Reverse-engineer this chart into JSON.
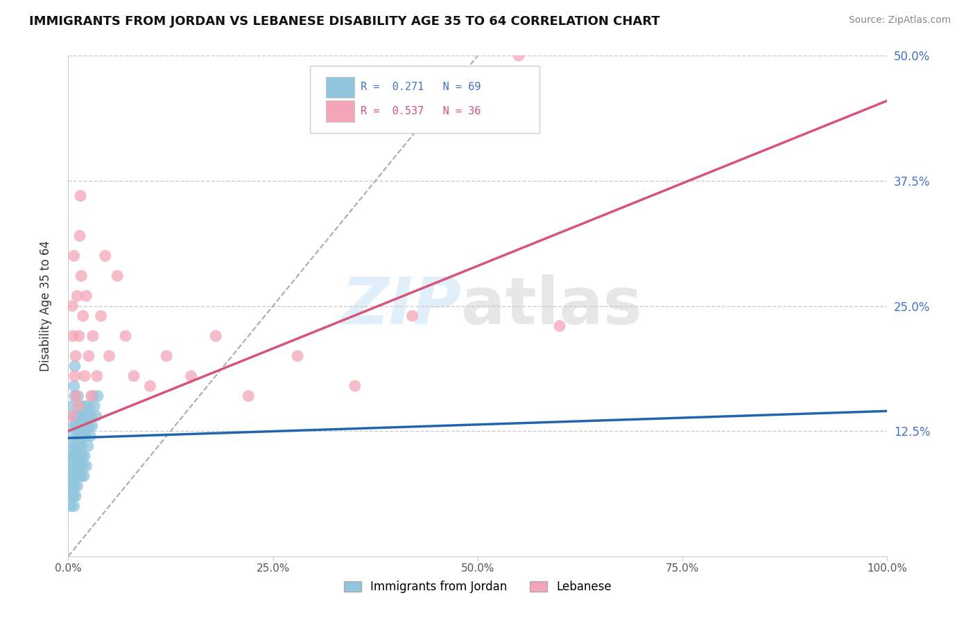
{
  "title": "IMMIGRANTS FROM JORDAN VS LEBANESE DISABILITY AGE 35 TO 64 CORRELATION CHART",
  "source": "Source: ZipAtlas.com",
  "ylabel": "Disability Age 35 to 64",
  "xlim": [
    0.0,
    1.0
  ],
  "ylim": [
    0.0,
    0.5
  ],
  "xticks": [
    0.0,
    0.25,
    0.5,
    0.75,
    1.0
  ],
  "xtick_labels": [
    "0.0%",
    "25.0%",
    "50.0%",
    "75.0%",
    "100.0%"
  ],
  "yticks": [
    0.0,
    0.125,
    0.25,
    0.375,
    0.5
  ],
  "ytick_labels": [
    "",
    "12.5%",
    "25.0%",
    "37.5%",
    "50.0%"
  ],
  "jordan_color": "#92c5de",
  "lebanese_color": "#f4a6b8",
  "jordan_line_color": "#2166ac",
  "lebanese_line_color": "#d6537a",
  "jordan_R": 0.271,
  "jordan_N": 69,
  "lebanese_R": 0.537,
  "lebanese_N": 36,
  "legend_label_jordan": "Immigrants from Jordan",
  "legend_label_lebanese": "Lebanese",
  "background_color": "#ffffff",
  "grid_color": "#cccccc",
  "jordan_x": [
    0.002,
    0.003,
    0.003,
    0.004,
    0.004,
    0.005,
    0.005,
    0.005,
    0.006,
    0.006,
    0.007,
    0.007,
    0.007,
    0.008,
    0.008,
    0.008,
    0.009,
    0.009,
    0.01,
    0.01,
    0.01,
    0.011,
    0.011,
    0.012,
    0.012,
    0.013,
    0.013,
    0.014,
    0.014,
    0.015,
    0.015,
    0.016,
    0.016,
    0.017,
    0.018,
    0.019,
    0.02,
    0.021,
    0.022,
    0.023,
    0.024,
    0.025,
    0.026,
    0.027,
    0.028,
    0.029,
    0.03,
    0.032,
    0.034,
    0.036,
    0.003,
    0.004,
    0.005,
    0.006,
    0.007,
    0.008,
    0.009,
    0.01,
    0.011,
    0.012,
    0.013,
    0.014,
    0.015,
    0.016,
    0.017,
    0.018,
    0.019,
    0.02,
    0.022
  ],
  "jordan_y": [
    0.08,
    0.1,
    0.07,
    0.09,
    0.11,
    0.08,
    0.12,
    0.15,
    0.1,
    0.13,
    0.09,
    0.14,
    0.17,
    0.11,
    0.16,
    0.19,
    0.1,
    0.13,
    0.08,
    0.11,
    0.14,
    0.12,
    0.09,
    0.13,
    0.16,
    0.11,
    0.14,
    0.1,
    0.13,
    0.12,
    0.15,
    0.11,
    0.14,
    0.13,
    0.12,
    0.14,
    0.13,
    0.15,
    0.12,
    0.14,
    0.11,
    0.13,
    0.15,
    0.12,
    0.14,
    0.13,
    0.16,
    0.15,
    0.14,
    0.16,
    0.05,
    0.06,
    0.07,
    0.06,
    0.05,
    0.07,
    0.06,
    0.08,
    0.07,
    0.09,
    0.08,
    0.1,
    0.09,
    0.08,
    0.1,
    0.09,
    0.08,
    0.1,
    0.09
  ],
  "lebanese_x": [
    0.004,
    0.005,
    0.006,
    0.007,
    0.008,
    0.009,
    0.01,
    0.011,
    0.012,
    0.013,
    0.014,
    0.015,
    0.016,
    0.018,
    0.02,
    0.022,
    0.025,
    0.028,
    0.03,
    0.035,
    0.04,
    0.045,
    0.05,
    0.06,
    0.07,
    0.08,
    0.1,
    0.12,
    0.15,
    0.18,
    0.22,
    0.28,
    0.35,
    0.42,
    0.55,
    0.6
  ],
  "lebanese_y": [
    0.14,
    0.25,
    0.22,
    0.3,
    0.18,
    0.2,
    0.16,
    0.26,
    0.15,
    0.22,
    0.32,
    0.36,
    0.28,
    0.24,
    0.18,
    0.26,
    0.2,
    0.16,
    0.22,
    0.18,
    0.24,
    0.3,
    0.2,
    0.28,
    0.22,
    0.18,
    0.17,
    0.2,
    0.18,
    0.22,
    0.16,
    0.2,
    0.17,
    0.24,
    0.5,
    0.23
  ],
  "diag_line_x": [
    0.0,
    0.5
  ],
  "diag_line_y": [
    0.0,
    0.5
  ],
  "jordan_trend_x": [
    0.0,
    1.0
  ],
  "jordan_trend_y": [
    0.118,
    0.145
  ],
  "lebanese_trend_x": [
    0.0,
    1.0
  ],
  "lebanese_trend_y": [
    0.125,
    0.455
  ]
}
